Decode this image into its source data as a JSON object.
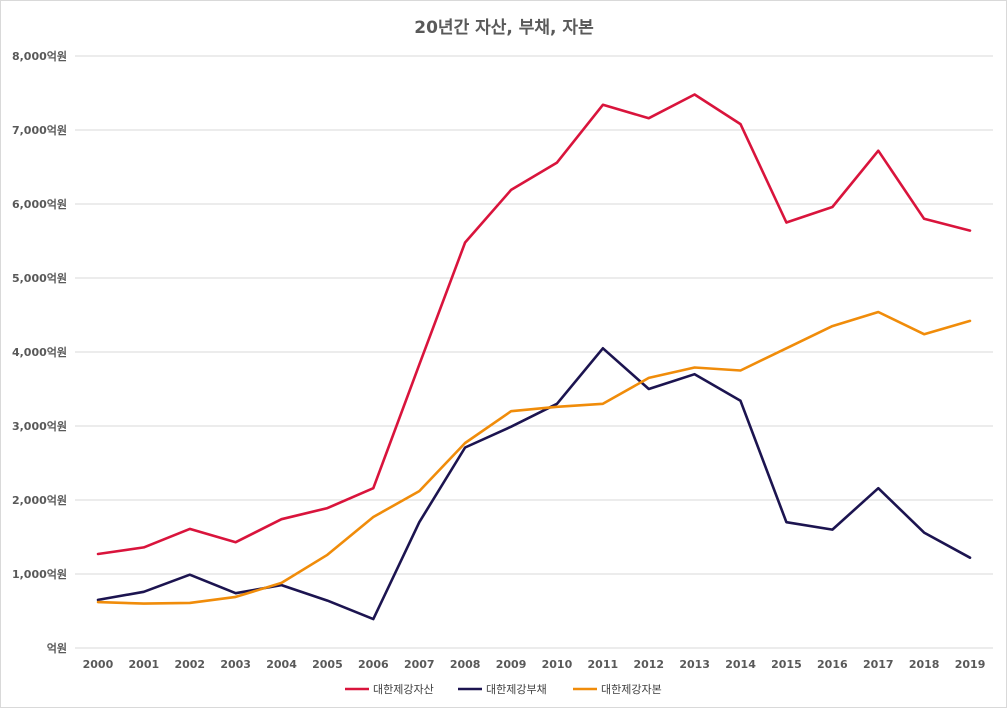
{
  "chart_data": {
    "type": "line",
    "title": "20년간 자산, 부채, 자본",
    "xlabel": "",
    "ylabel": "",
    "ylim": [
      0,
      8000
    ],
    "y_tick_labels": [
      "억원",
      "1,000억원",
      "2,000억원",
      "3,000억원",
      "4,000억원",
      "5,000억원",
      "6,000억원",
      "7,000억원",
      "8,000억원"
    ],
    "y_tick_values": [
      0,
      1000,
      2000,
      3000,
      4000,
      5000,
      6000,
      7000,
      8000
    ],
    "categories": [
      "2000",
      "2001",
      "2002",
      "2003",
      "2004",
      "2005",
      "2006",
      "2007",
      "2008",
      "2009",
      "2010",
      "2011",
      "2012",
      "2013",
      "2014",
      "2015",
      "2016",
      "2017",
      "2018",
      "2019"
    ],
    "grid": true,
    "legend_position": "bottom",
    "series": [
      {
        "name": "대한제강자산",
        "color": "#d9143c",
        "values": [
          1270,
          1360,
          1610,
          1430,
          1740,
          1890,
          2160,
          3830,
          5480,
          6190,
          6560,
          7340,
          7160,
          7480,
          7080,
          5750,
          5960,
          6720,
          5800,
          5640
        ]
      },
      {
        "name": "대한제강부채",
        "color": "#1c1450",
        "values": [
          650,
          760,
          990,
          740,
          850,
          640,
          390,
          1700,
          2710,
          2990,
          3300,
          4050,
          3500,
          3700,
          3340,
          1700,
          1600,
          2160,
          1560,
          1220
        ]
      },
      {
        "name": "대한제강자본",
        "color": "#f08c0a",
        "values": [
          620,
          600,
          610,
          690,
          880,
          1260,
          1770,
          2120,
          2770,
          3200,
          3260,
          3300,
          3650,
          3790,
          3750,
          4050,
          4350,
          4540,
          4240,
          4420
        ]
      }
    ]
  }
}
